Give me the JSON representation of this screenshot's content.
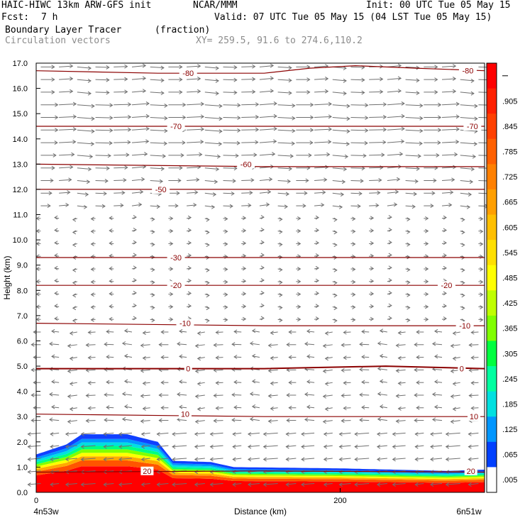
{
  "header": {
    "title_left": "HAIC-HIWC 13km ARW-GFS init",
    "title_center": "NCAR/MMM",
    "init": "Init: 00 UTC Tue 05 May 15",
    "fcst_label": "Fcst:",
    "fcst_value": "7 h",
    "valid": "Valid: 07 UTC Tue 05 May 15 (04 LST Tue 05 May 15)",
    "field_name": "Boundary Layer Tracer",
    "field_units": "(fraction)",
    "vector_name": "Circulation vectors",
    "xy_range": "XY= 259.5, 91.6 to 274.6,110.2"
  },
  "chart_data": {
    "type": "heatmap",
    "xlabel": "Distance (km)",
    "ylabel": "Height (km)",
    "xlim": [
      0,
      295
    ],
    "ylim": [
      0,
      17
    ],
    "xticks": [
      "0",
      "200"
    ],
    "yticks": [
      "0.0",
      "1.0",
      "2.0",
      "3.0",
      "4.0",
      "5.0",
      "6.0",
      "7.0",
      "8.0",
      "9.0",
      "10.0",
      "11.0",
      "12.0",
      "13.0",
      "14.0",
      "15.0",
      "16.0",
      "17.0"
    ],
    "x_endpoint_labels": [
      "4n53w",
      "6n51w"
    ],
    "colorbar": {
      "labels": [
        "",
        ".905",
        ".845",
        ".785",
        ".725",
        ".665",
        ".605",
        ".545",
        ".485",
        ".425",
        ".365",
        ".305",
        ".245",
        ".185",
        ".125",
        ".065",
        ".005"
      ],
      "colors": [
        "#ff0000",
        "#ff2000",
        "#ff4000",
        "#ff6000",
        "#ff8000",
        "#ff9f00",
        "#ffbf00",
        "#ffdf00",
        "#ffff00",
        "#bfff00",
        "#80ff00",
        "#00ff40",
        "#00ffa0",
        "#00e0e0",
        "#0096ff",
        "#0040ff",
        "#ffffff"
      ]
    },
    "tracer_top_km": [
      [
        0,
        1.5
      ],
      [
        20,
        1.9
      ],
      [
        30,
        2.3
      ],
      [
        60,
        2.3
      ],
      [
        80,
        2.0
      ],
      [
        90,
        1.25
      ],
      [
        115,
        1.2
      ],
      [
        130,
        1.0
      ],
      [
        200,
        0.95
      ],
      [
        270,
        0.85
      ],
      [
        295,
        0.9
      ]
    ],
    "temperature_contours_c": [
      {
        "label": "-80",
        "points": [
          [
            0,
            16.7
          ],
          [
            80,
            16.6
          ],
          [
            150,
            16.6
          ],
          [
            180,
            16.8
          ],
          [
            210,
            16.9
          ],
          [
            250,
            16.8
          ],
          [
            295,
            16.7
          ]
        ]
      },
      {
        "label": "-70",
        "points": [
          [
            0,
            14.5
          ],
          [
            150,
            14.5
          ],
          [
            295,
            14.5
          ]
        ]
      },
      {
        "label": "-60",
        "points": [
          [
            0,
            13.0
          ],
          [
            150,
            12.9
          ],
          [
            295,
            12.9
          ]
        ]
      },
      {
        "label": "-50",
        "points": [
          [
            0,
            12.0
          ],
          [
            150,
            12.0
          ],
          [
            295,
            12.0
          ]
        ]
      },
      {
        "label": "-30",
        "points": [
          [
            0,
            9.3
          ],
          [
            150,
            9.3
          ],
          [
            295,
            9.3
          ]
        ]
      },
      {
        "label": "-20",
        "points": [
          [
            0,
            8.2
          ],
          [
            150,
            8.2
          ],
          [
            295,
            8.2
          ]
        ]
      },
      {
        "label": "-10",
        "points": [
          [
            0,
            6.7
          ],
          [
            150,
            6.6
          ],
          [
            295,
            6.6
          ]
        ]
      },
      {
        "label": "0",
        "points": [
          [
            0,
            4.9
          ],
          [
            150,
            4.9
          ],
          [
            230,
            5.0
          ],
          [
            295,
            4.9
          ]
        ]
      },
      {
        "label": "10",
        "points": [
          [
            0,
            3.1
          ],
          [
            150,
            3.0
          ],
          [
            295,
            3.0
          ]
        ]
      },
      {
        "label": "20",
        "points": [
          [
            0,
            0.8
          ],
          [
            150,
            0.85
          ],
          [
            295,
            0.8
          ]
        ]
      }
    ],
    "contour_labels": [
      {
        "text": "-80",
        "x": 100,
        "y": 16.6
      },
      {
        "text": "-80",
        "x": 284,
        "y": 16.7
      },
      {
        "text": "-70",
        "x": 92,
        "y": 14.5
      },
      {
        "text": "-70",
        "x": 287,
        "y": 14.5
      },
      {
        "text": "-60",
        "x": 138,
        "y": 13.0
      },
      {
        "text": "-50",
        "x": 82,
        "y": 12.0
      },
      {
        "text": "-30",
        "x": 92,
        "y": 9.3
      },
      {
        "text": "-20",
        "x": 92,
        "y": 8.2
      },
      {
        "text": "-20",
        "x": 270,
        "y": 8.2
      },
      {
        "text": "-10",
        "x": 98,
        "y": 6.7
      },
      {
        "text": "-10",
        "x": 282,
        "y": 6.6
      },
      {
        "text": "0",
        "x": 100,
        "y": 4.9
      },
      {
        "text": "0",
        "x": 280,
        "y": 4.9
      },
      {
        "text": "10",
        "x": 98,
        "y": 3.1
      },
      {
        "text": "10",
        "x": 288,
        "y": 3.0
      },
      {
        "text": "20",
        "x": 73,
        "y": 0.85
      },
      {
        "text": "20",
        "x": 286,
        "y": 0.85
      }
    ],
    "grid": false,
    "legend": "right"
  }
}
